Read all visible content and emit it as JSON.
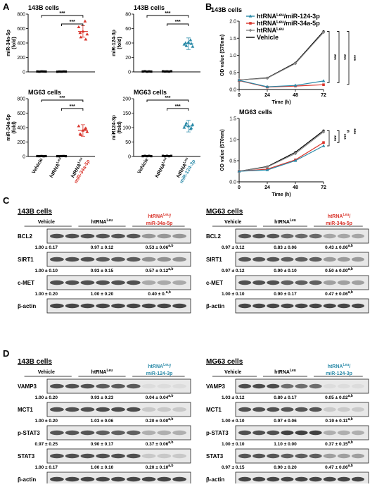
{
  "panelA": {
    "letter": "A",
    "charts": [
      {
        "title": "143B cells",
        "ylabel": "miR-34a-5p",
        "yunit": "(fold)",
        "ticks": [
          "0",
          "200",
          "400",
          "600",
          "800"
        ],
        "ymax": 800,
        "color": "#d9342b",
        "stars": [
          "***",
          "***"
        ],
        "points": [
          5,
          3,
          6,
          5,
          4,
          2,
          4,
          3,
          5,
          4,
          620,
          480,
          560,
          700,
          520,
          540,
          450
        ],
        "means": [
          4,
          3,
          560
        ]
      },
      {
        "title": "143B cells",
        "ylabel": "miR-124-3p",
        "yunit": "(fold)",
        "ticks": [
          "0",
          "20",
          "40",
          "60",
          "80"
        ],
        "ymax": 80,
        "color": "#2a8aa8",
        "stars": [
          "***",
          "***"
        ],
        "points": [
          0.5,
          0.8,
          0.3,
          0.6,
          0.4,
          0.7,
          0.5,
          0.6,
          0.4,
          0.8,
          38,
          36,
          41,
          44,
          35,
          40,
          39
        ],
        "means": [
          0.5,
          0.6,
          39
        ]
      },
      {
        "title": "MG63 cells",
        "ylabel": "miR-34a-5p",
        "yunit": "(fold)",
        "ticks": [
          "0",
          "200",
          "400",
          "600",
          "800"
        ],
        "ymax": 800,
        "color": "#d9342b",
        "stars": [
          "***",
          "***"
        ],
        "points": [
          5,
          4,
          6,
          3,
          5,
          4,
          3,
          5,
          6,
          4,
          420,
          300,
          360,
          380,
          340,
          310,
          390
        ],
        "means": [
          4,
          4,
          360
        ]
      },
      {
        "title": "MG63 cells",
        "ylabel": "miR124-3p",
        "yunit": "(fold)",
        "ticks": [
          "0",
          "50",
          "100",
          "150",
          "200"
        ],
        "ymax": 200,
        "color": "#2a8aa8",
        "stars": [
          "***",
          "***"
        ],
        "points": [
          1,
          2,
          1,
          2,
          1,
          2,
          1,
          2,
          1,
          2,
          100,
          115,
          105,
          95,
          110,
          108,
          98
        ],
        "means": [
          1,
          1,
          105
        ]
      }
    ],
    "xcat": [
      "Vehicle",
      "htRNA",
      "Leu",
      "htRNA",
      "Leu",
      "miR-34a-5p",
      "miR-124-3p"
    ]
  },
  "panelB": {
    "letter": "B",
    "chart_data": [
      {
        "type": "line",
        "title": "143B cells",
        "xlabel": "Time (h)",
        "ylabel": "OD value (570nm)",
        "x": [
          0,
          24,
          48,
          72
        ],
        "ylim": [
          0,
          2.0
        ],
        "yticks": [
          "0.0",
          "0.5",
          "1.0",
          "1.5",
          "2.0"
        ],
        "series": [
          {
            "name": "htRNA",
            "sup": "Leu",
            "suffix": "/miR-124-3p",
            "color": "#2a8aa8",
            "marker": "triangle",
            "values": [
              0.27,
              0.08,
              0.12,
              0.25
            ]
          },
          {
            "name": "htRNA",
            "sup": "Leu",
            "suffix": "/miR-34a-5p",
            "color": "#d9342b",
            "marker": "square",
            "values": [
              0.26,
              0.07,
              0.1,
              0.14
            ]
          },
          {
            "name": "htRNA",
            "sup": "Leu",
            "suffix": "",
            "color": "#888888",
            "marker": "diamond",
            "values": [
              0.28,
              0.33,
              0.76,
              1.67
            ]
          },
          {
            "name": "Vehicle",
            "sup": "",
            "suffix": "",
            "color": "#000000",
            "marker": "none",
            "values": [
              0.28,
              0.34,
              0.78,
              1.7
            ]
          }
        ],
        "sig": [
          "***",
          "***",
          "***"
        ]
      },
      {
        "type": "line",
        "title": "MG63 cells",
        "xlabel": "Time (h)",
        "ylabel": "OD value (570nm)",
        "x": [
          0,
          24,
          48,
          72
        ],
        "ylim": [
          0.0,
          1.5
        ],
        "yticks": [
          "0.0",
          "0.5",
          "1.0",
          "1.5"
        ],
        "series": [
          {
            "name": "htRNA/miR-124-3p",
            "color": "#2a8aa8",
            "marker": "triangle",
            "values": [
              0.25,
              0.28,
              0.5,
              0.85
            ]
          },
          {
            "name": "htRNA/miR-34a-5p",
            "color": "#d9342b",
            "marker": "square",
            "values": [
              0.25,
              0.3,
              0.52,
              0.93
            ]
          },
          {
            "name": "htRNA",
            "color": "#888888",
            "marker": "diamond",
            "values": [
              0.25,
              0.35,
              0.67,
              1.18
            ]
          },
          {
            "name": "Vehicle",
            "color": "#000000",
            "marker": "none",
            "values": [
              0.25,
              0.36,
              0.7,
              1.21
            ]
          }
        ],
        "sig": [
          "***",
          "***",
          "***"
        ]
      }
    ]
  },
  "panelC": {
    "letter": "C",
    "left": {
      "title": "143B cells",
      "groups": [
        "Vehicle",
        "htRNA",
        "Leu",
        "htRNA",
        "Leu",
        "miR-34a-5p"
      ],
      "rows": [
        {
          "name": "BCL2",
          "values": [
            "1.00 ± 0.17",
            "0.97 ± 0.12",
            "0.53 ± 0.06"
          ],
          "sup": "a,b"
        },
        {
          "name": "SIRT1",
          "values": [
            "1.00 ± 0.10",
            "0.93 ± 0.15",
            "0.57 ± 0.12"
          ],
          "sup": "a,b"
        },
        {
          "name": "c-MET",
          "values": [
            "1.00 ± 0.20",
            "1.00 ± 0.20",
            "0.40 ± 0."
          ],
          "sup": "a,b"
        },
        {
          "name": "β-actin",
          "values": []
        }
      ]
    },
    "right": {
      "title": "MG63 cells",
      "groups": [
        "Vehicle",
        "htRNA",
        "Leu",
        "htRNA",
        "Leu",
        "miR-34a-5p"
      ],
      "rows": [
        {
          "name": "BCL2",
          "values": [
            "0.97 ± 0.12",
            "0.83 ± 0.06",
            "0.43 ± 0.06"
          ],
          "sup": "a,b"
        },
        {
          "name": "SIRT1",
          "values": [
            "0.97 ± 0.12",
            "0.90 ± 0.10",
            "0.50 ± 0.00"
          ],
          "sup": "a,b"
        },
        {
          "name": "c-MET",
          "values": [
            "1.00 ± 0.10",
            "0.90 ± 0.17",
            "0.47 ± 0.06"
          ],
          "sup": "a,b"
        },
        {
          "name": "β-actin",
          "values": []
        }
      ]
    }
  },
  "panelD": {
    "letter": "D",
    "left": {
      "title": "143B cells",
      "groups": [
        "Vehicle",
        "htRNA",
        "Leu",
        "htRNA",
        "Leu",
        "miR-124-3p"
      ],
      "rows": [
        {
          "name": "VAMP3",
          "values": [
            "1.00 ± 0.20",
            "0.93 ± 0.23",
            "0.04 ± 0.04"
          ],
          "sup": "a,b"
        },
        {
          "name": "MCT1",
          "values": [
            "1.00 ± 0.20",
            "1.03 ± 0.06",
            "0.20 ± 0.00"
          ],
          "sup": "a,b"
        },
        {
          "name": "p-STAT3",
          "values": [
            "0.97 ± 0.25",
            "0.90 ± 0.17",
            "0.37 ± 0.06"
          ],
          "sup": "a,b"
        },
        {
          "name": "STAT3",
          "values": [
            "1.00 ± 0.17",
            "1.00 ± 0.10",
            "0.20 ± 0.10"
          ],
          "sup": "a,b"
        },
        {
          "name": "β-actin",
          "values": []
        }
      ]
    },
    "right": {
      "title": "MG63 cells",
      "groups": [
        "Vehicle",
        "htRNA",
        "Leu",
        "htRNA",
        "Leu",
        "miR-124-3p"
      ],
      "rows": [
        {
          "name": "VAMP3",
          "values": [
            "1.03 ± 0.12",
            "0.80 ± 0.17",
            "0.05 ± 0.02"
          ],
          "sup": "a,b"
        },
        {
          "name": "MCT1",
          "values": [
            "1.00 ± 0.10",
            "0.97 ± 0.06",
            "0.19 ± 0.11"
          ],
          "sup": "a,b"
        },
        {
          "name": "p-STAT3",
          "values": [
            "1.00 ± 0.10",
            "1.10 ± 0.00",
            "0.37 ± 0.15"
          ],
          "sup": "a,b"
        },
        {
          "name": "STAT3",
          "values": [
            "0.97 ± 0.15",
            "0.90 ± 0.20",
            "0.47 ± 0.06"
          ],
          "sup": "a,b"
        },
        {
          "name": "β-actin",
          "values": []
        }
      ]
    }
  }
}
